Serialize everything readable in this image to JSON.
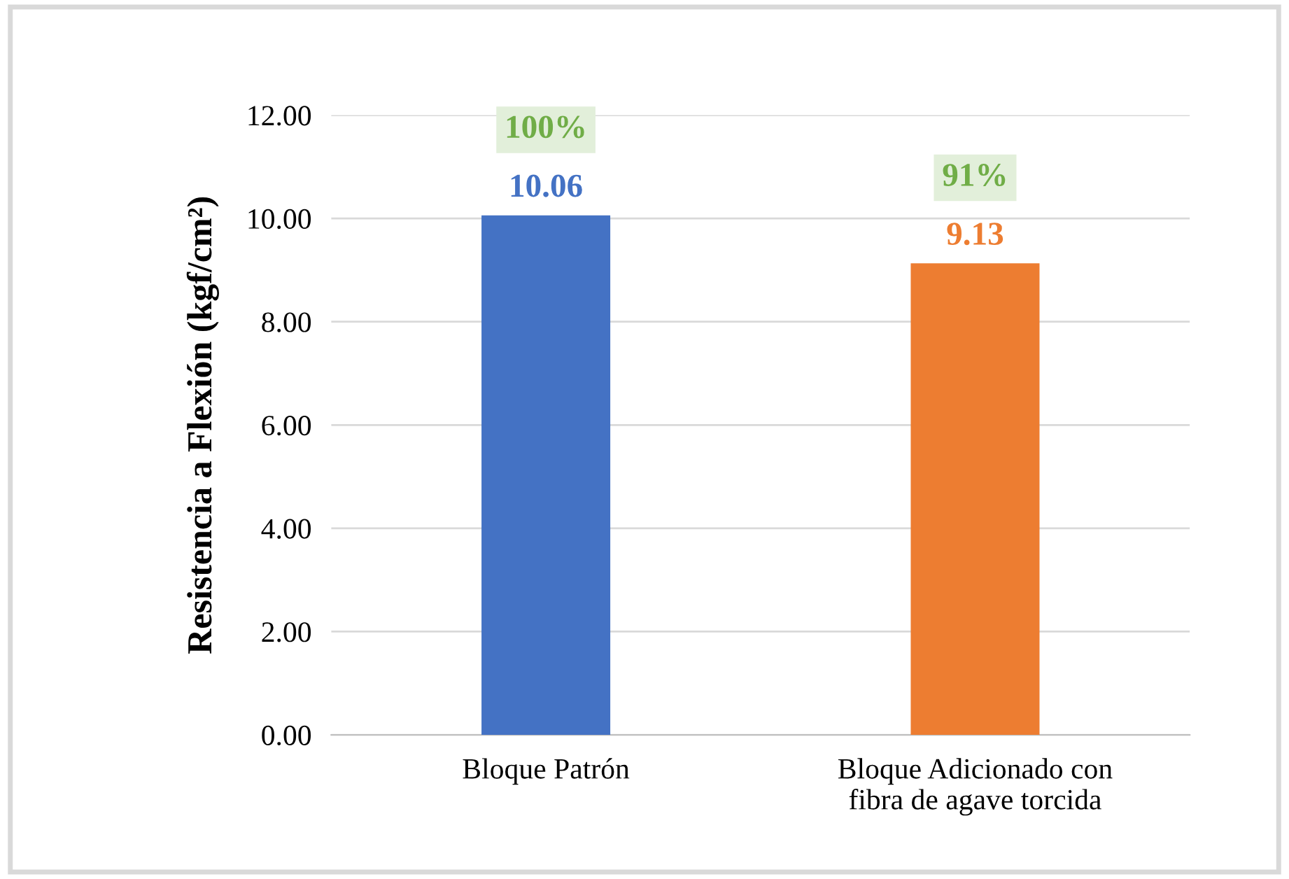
{
  "chart_data": {
    "type": "bar",
    "ylabel": "Resistencia a Flexión (kgf/cm²)",
    "categories": [
      "Bloque Patrón",
      "Bloque Adicionado con\nfibra de agave torcida"
    ],
    "values": [
      10.06,
      9.13
    ],
    "colors": [
      "#4472c4",
      "#ed7d31"
    ],
    "value_labels": [
      "10.06",
      "9.13"
    ],
    "ylim": [
      0,
      12
    ],
    "yticks": [
      {
        "value": 0,
        "label": "0.00"
      },
      {
        "value": 2,
        "label": "2.00"
      },
      {
        "value": 4,
        "label": "4.00"
      },
      {
        "value": 6,
        "label": "6.00"
      },
      {
        "value": 8,
        "label": "8.00"
      },
      {
        "value": 10,
        "label": "10.00"
      },
      {
        "value": 12,
        "label": "12.00"
      }
    ],
    "grid": "y",
    "annotations": [
      "100%",
      "91%"
    ]
  }
}
